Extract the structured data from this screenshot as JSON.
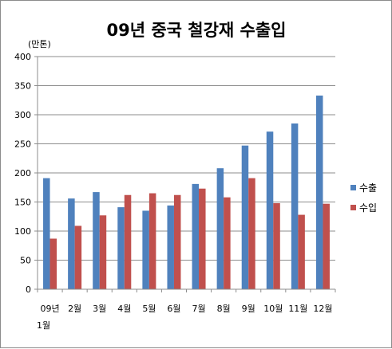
{
  "chart_data": {
    "type": "bar",
    "title": "09년 중국 철강재 수출입",
    "unit_label": "(만톤)",
    "categories": [
      "09년 1월",
      "2월",
      "3월",
      "4월",
      "5월",
      "6월",
      "7월",
      "8월",
      "9월",
      "10월",
      "11월",
      "12월"
    ],
    "category_lines": [
      [
        "09년",
        "1월"
      ],
      [
        "2월"
      ],
      [
        "3월"
      ],
      [
        "4월"
      ],
      [
        "5월"
      ],
      [
        "6월"
      ],
      [
        "7월"
      ],
      [
        "8월"
      ],
      [
        "9월"
      ],
      [
        "10월"
      ],
      [
        "11월"
      ],
      [
        "12월"
      ]
    ],
    "series": [
      {
        "name": "수출",
        "color": "#4f81bd",
        "values": [
          191,
          156,
          167,
          141,
          135,
          144,
          181,
          208,
          247,
          271,
          285,
          333
        ]
      },
      {
        "name": "수입",
        "color": "#c0504d",
        "values": [
          87,
          109,
          127,
          162,
          165,
          162,
          173,
          158,
          191,
          148,
          128,
          147
        ]
      }
    ],
    "ylim": [
      0,
      400
    ],
    "yticks": [
      0,
      50,
      100,
      150,
      200,
      250,
      300,
      350,
      400
    ],
    "grid": true,
    "legend_position": "right"
  }
}
